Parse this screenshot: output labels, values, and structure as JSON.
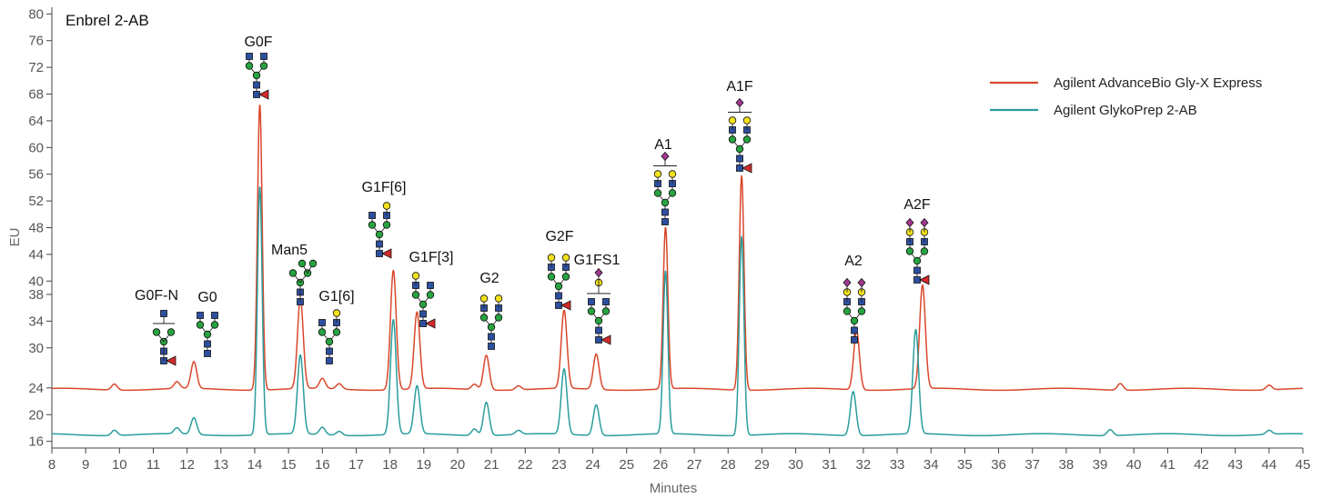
{
  "chart_data": {
    "type": "line",
    "title": "Enbrel 2-AB",
    "xlabel": "Minutes",
    "ylabel": "EU",
    "xlim": [
      8,
      45
    ],
    "ylim": [
      15,
      81
    ],
    "x_ticks": [
      8,
      9,
      10,
      11,
      12,
      13,
      14,
      15,
      16,
      17,
      18,
      19,
      20,
      21,
      22,
      23,
      24,
      25,
      26,
      27,
      28,
      29,
      30,
      31,
      32,
      33,
      34,
      35,
      36,
      37,
      38,
      39,
      40,
      41,
      42,
      43,
      44,
      45
    ],
    "y_ticks": [
      16,
      20,
      24,
      30,
      34,
      38,
      40,
      44,
      48,
      52,
      56,
      60,
      64,
      68,
      72,
      76,
      80
    ],
    "grid": false,
    "legend_position": "top-right",
    "series": [
      {
        "name": "Agilent AdvanceBio Gly-X Express",
        "color": "#d9472b",
        "baseline": 23.8,
        "peaks": [
          {
            "x": 9.85,
            "y": 24.7
          },
          {
            "x": 11.7,
            "y": 24.8
          },
          {
            "x": 12.2,
            "y": 27.8
          },
          {
            "x": 14.15,
            "y": 66.6
          },
          {
            "x": 15.35,
            "y": 37.3
          },
          {
            "x": 16.0,
            "y": 25.3
          },
          {
            "x": 16.5,
            "y": 24.6
          },
          {
            "x": 18.1,
            "y": 41.7
          },
          {
            "x": 18.8,
            "y": 35.3
          },
          {
            "x": 20.5,
            "y": 24.6
          },
          {
            "x": 20.85,
            "y": 29.0
          },
          {
            "x": 21.8,
            "y": 24.4
          },
          {
            "x": 23.15,
            "y": 35.5
          },
          {
            "x": 24.1,
            "y": 29.1
          },
          {
            "x": 26.15,
            "y": 48.0
          },
          {
            "x": 28.4,
            "y": 55.9
          },
          {
            "x": 31.8,
            "y": 32.6
          },
          {
            "x": 33.75,
            "y": 39.3
          },
          {
            "x": 39.6,
            "y": 24.8
          },
          {
            "x": 44.0,
            "y": 24.5
          }
        ]
      },
      {
        "name": "Agilent GlykoPrep 2-AB",
        "color": "#2a9d9c",
        "baseline": 17.0,
        "peaks": [
          {
            "x": 9.85,
            "y": 17.8
          },
          {
            "x": 11.7,
            "y": 17.9
          },
          {
            "x": 12.2,
            "y": 19.5
          },
          {
            "x": 14.15,
            "y": 54.2
          },
          {
            "x": 15.35,
            "y": 28.8
          },
          {
            "x": 16.0,
            "y": 18.1
          },
          {
            "x": 16.5,
            "y": 17.6
          },
          {
            "x": 18.1,
            "y": 34.2
          },
          {
            "x": 18.8,
            "y": 24.2
          },
          {
            "x": 20.5,
            "y": 18.0
          },
          {
            "x": 20.85,
            "y": 22.0
          },
          {
            "x": 21.8,
            "y": 17.6
          },
          {
            "x": 23.15,
            "y": 26.8
          },
          {
            "x": 24.1,
            "y": 21.6
          },
          {
            "x": 26.15,
            "y": 41.4
          },
          {
            "x": 28.4,
            "y": 46.8
          },
          {
            "x": 31.7,
            "y": 23.6
          },
          {
            "x": 33.55,
            "y": 32.6
          },
          {
            "x": 39.3,
            "y": 17.9
          },
          {
            "x": 44.0,
            "y": 17.6
          }
        ]
      }
    ],
    "annotations": [
      {
        "label": "G0F-N",
        "x": 11.5,
        "icon": "G0F-N-glycan-icon"
      },
      {
        "label": "G0",
        "x": 12.4,
        "icon": "G0-glycan-icon"
      },
      {
        "label": "G0F",
        "x": 14.0,
        "icon": "G0F-glycan-icon"
      },
      {
        "label": "Man5",
        "x": 15.4,
        "icon": "Man5-glycan-icon"
      },
      {
        "label": "G1[6]",
        "x": 16.4,
        "icon": "G1-glycan-icon"
      },
      {
        "label": "G1F[6]",
        "x": 17.8,
        "icon": "G1F6-glycan-icon"
      },
      {
        "label": "G1F[3]",
        "x": 19.0,
        "icon": "G1F3-glycan-icon"
      },
      {
        "label": "G2",
        "x": 20.9,
        "icon": "G2-glycan-icon"
      },
      {
        "label": "G2F",
        "x": 23.05,
        "icon": "G2F-glycan-icon"
      },
      {
        "label": "G1FS1",
        "x": 24.2,
        "icon": "G1FS1-glycan-icon"
      },
      {
        "label": "A1",
        "x": 26.05,
        "icon": "A1-glycan-icon"
      },
      {
        "label": "A1F",
        "x": 28.35,
        "icon": "A1F-glycan-icon"
      },
      {
        "label": "A2",
        "x": 31.8,
        "icon": "A2-glycan-icon"
      },
      {
        "label": "A2F",
        "x": 33.75,
        "icon": "A2F-glycan-icon"
      }
    ]
  }
}
